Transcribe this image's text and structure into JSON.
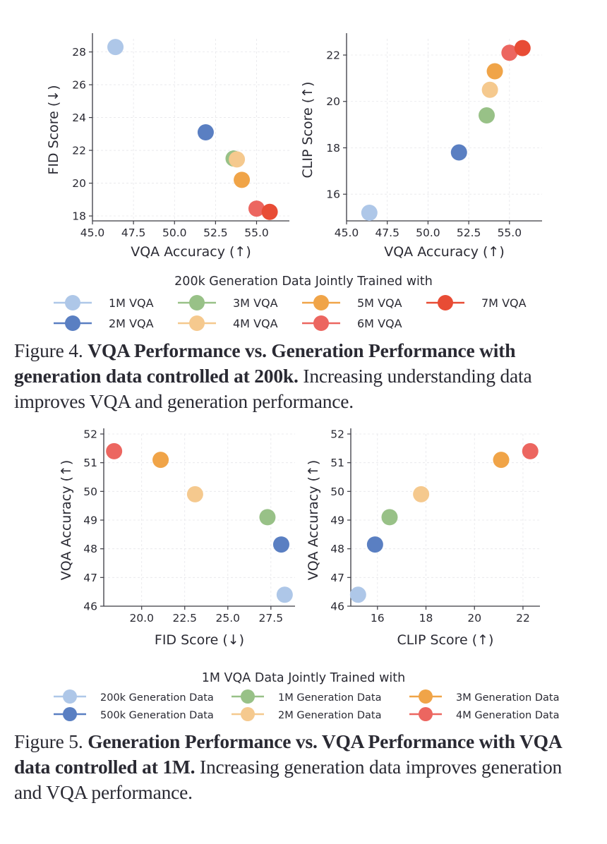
{
  "figure4": {
    "legend_title": "200k Generation Data Jointly Trained with",
    "caption": {
      "label": "Figure 4.",
      "bold": "VQA Performance vs. Generation Performance with generation data controlled at 200k.",
      "rest": "Increasing understanding data improves VQA and generation performance."
    }
  },
  "figure5": {
    "legend_title": "1M VQA Data Jointly Trained with",
    "caption": {
      "label": "Figure 5.",
      "bold": "Generation Performance vs. VQA Performance with VQA data controlled at 1M.",
      "rest": "Increasing generation data improves generation and VQA performance."
    }
  },
  "chart_data": [
    {
      "id": "fig4-left",
      "type": "scatter",
      "title": "",
      "xlabel": "VQA Accuracy (↑)",
      "ylabel": "FID Score (↓)",
      "xlim": [
        45.0,
        57.0
      ],
      "ylim": [
        17.7,
        28.8
      ],
      "xticks": [
        45.0,
        47.5,
        50.0,
        52.5,
        55.0
      ],
      "xtick_labels": [
        "45.0",
        "47.5",
        "50.0",
        "52.5",
        "55.0"
      ],
      "yticks": [
        18,
        20,
        22,
        24,
        26,
        28
      ],
      "ytick_labels": [
        "18",
        "20",
        "22",
        "24",
        "26",
        "28"
      ],
      "grid": true,
      "series": [
        {
          "name": "1M VQA",
          "color": "#aec7e8",
          "x": 46.4,
          "y": 28.3
        },
        {
          "name": "2M VQA",
          "color": "#5a7fc2",
          "x": 51.9,
          "y": 23.1
        },
        {
          "name": "3M VQA",
          "color": "#98c187",
          "x": 53.6,
          "y": 21.5
        },
        {
          "name": "4M VQA",
          "color": "#f5c98e",
          "x": 53.8,
          "y": 21.45
        },
        {
          "name": "5M VQA",
          "color": "#f0a448",
          "x": 54.1,
          "y": 20.2
        },
        {
          "name": "6M VQA",
          "color": "#ec6660",
          "x": 55.0,
          "y": 18.45
        },
        {
          "name": "7M VQA",
          "color": "#e84c35",
          "x": 55.8,
          "y": 18.25
        }
      ]
    },
    {
      "id": "fig4-right",
      "type": "scatter",
      "title": "",
      "xlabel": "VQA Accuracy (↑)",
      "ylabel": "CLIP Score (↑)",
      "xlim": [
        45.0,
        57.0
      ],
      "ylim": [
        14.85,
        22.7
      ],
      "xticks": [
        45.0,
        47.5,
        50.0,
        52.5,
        55.0
      ],
      "xtick_labels": [
        "45.0",
        "47.5",
        "50.0",
        "52.5",
        "55.0"
      ],
      "yticks": [
        16,
        18,
        20,
        22
      ],
      "ytick_labels": [
        "16",
        "18",
        "20",
        "22"
      ],
      "grid": true,
      "series": [
        {
          "name": "1M VQA",
          "color": "#aec7e8",
          "x": 46.4,
          "y": 15.2
        },
        {
          "name": "2M VQA",
          "color": "#5a7fc2",
          "x": 51.9,
          "y": 17.8
        },
        {
          "name": "3M VQA",
          "color": "#98c187",
          "x": 53.6,
          "y": 19.4
        },
        {
          "name": "4M VQA",
          "color": "#f5c98e",
          "x": 53.8,
          "y": 20.5
        },
        {
          "name": "5M VQA",
          "color": "#f0a448",
          "x": 54.1,
          "y": 21.3
        },
        {
          "name": "6M VQA",
          "color": "#ec6660",
          "x": 55.0,
          "y": 22.1
        },
        {
          "name": "7M VQA",
          "color": "#e84c35",
          "x": 55.8,
          "y": 22.3
        }
      ]
    },
    {
      "id": "fig5-left",
      "type": "scatter",
      "title": "",
      "xlabel": "FID Score (↓)",
      "ylabel": "VQA Accuracy (↑)",
      "xlim": [
        17.8,
        28.9
      ],
      "ylim": [
        46.0,
        52.0
      ],
      "xticks": [
        20.0,
        22.5,
        25.0,
        27.5
      ],
      "xtick_labels": [
        "20.0",
        "22.5",
        "25.0",
        "27.5"
      ],
      "yticks": [
        46,
        47,
        48,
        49,
        50,
        51,
        52
      ],
      "ytick_labels": [
        "46",
        "47",
        "48",
        "49",
        "50",
        "51",
        "52"
      ],
      "grid": true,
      "series": [
        {
          "name": "200k Generation Data",
          "color": "#aec7e8",
          "x": 28.3,
          "y": 46.4
        },
        {
          "name": "500k Generation Data",
          "color": "#5a7fc2",
          "x": 28.1,
          "y": 48.15
        },
        {
          "name": "1M Generation Data",
          "color": "#98c187",
          "x": 27.3,
          "y": 49.1
        },
        {
          "name": "2M Generation Data",
          "color": "#f5c98e",
          "x": 23.1,
          "y": 49.9
        },
        {
          "name": "3M Generation Data",
          "color": "#f0a448",
          "x": 21.1,
          "y": 51.1
        },
        {
          "name": "4M Generation Data",
          "color": "#ec6660",
          "x": 18.4,
          "y": 51.4
        }
      ]
    },
    {
      "id": "fig5-right",
      "type": "scatter",
      "title": "",
      "xlabel": "CLIP Score (↑)",
      "ylabel": "VQA Accuracy (↑)",
      "xlim": [
        14.9,
        22.7
      ],
      "ylim": [
        46.0,
        52.0
      ],
      "xticks": [
        16,
        18,
        20,
        22
      ],
      "xtick_labels": [
        "16",
        "18",
        "20",
        "22"
      ],
      "yticks": [
        46,
        47,
        48,
        49,
        50,
        51,
        52
      ],
      "ytick_labels": [
        "46",
        "47",
        "48",
        "49",
        "50",
        "51",
        "52"
      ],
      "grid": true,
      "series": [
        {
          "name": "200k Generation Data",
          "color": "#aec7e8",
          "x": 15.2,
          "y": 46.4
        },
        {
          "name": "500k Generation Data",
          "color": "#5a7fc2",
          "x": 15.9,
          "y": 48.15
        },
        {
          "name": "1M Generation Data",
          "color": "#98c187",
          "x": 16.5,
          "y": 49.1
        },
        {
          "name": "2M Generation Data",
          "color": "#f5c98e",
          "x": 17.8,
          "y": 49.9
        },
        {
          "name": "3M Generation Data",
          "color": "#f0a448",
          "x": 21.1,
          "y": 51.1
        },
        {
          "name": "4M Generation Data",
          "color": "#ec6660",
          "x": 22.3,
          "y": 51.4
        }
      ]
    }
  ],
  "legends": [
    {
      "id": "fig4-legend",
      "placement": "below-charts",
      "columns": 4,
      "entries": [
        {
          "label": "1M VQA",
          "color": "#aec7e8"
        },
        {
          "label": "2M VQA",
          "color": "#5a7fc2"
        },
        {
          "label": "3M VQA",
          "color": "#98c187"
        },
        {
          "label": "4M VQA",
          "color": "#f5c98e"
        },
        {
          "label": "5M VQA",
          "color": "#f0a448"
        },
        {
          "label": "6M VQA",
          "color": "#ec6660"
        },
        {
          "label": "7M VQA",
          "color": "#e84c35"
        }
      ]
    },
    {
      "id": "fig5-legend",
      "placement": "below-charts",
      "columns": 3,
      "entries": [
        {
          "label": "200k Generation Data",
          "color": "#aec7e8"
        },
        {
          "label": "500k Generation Data",
          "color": "#5a7fc2"
        },
        {
          "label": "1M Generation Data",
          "color": "#98c187"
        },
        {
          "label": "2M Generation Data",
          "color": "#f5c98e"
        },
        {
          "label": "3M Generation Data",
          "color": "#f0a448"
        },
        {
          "label": "4M Generation Data",
          "color": "#ec6660"
        }
      ]
    }
  ]
}
